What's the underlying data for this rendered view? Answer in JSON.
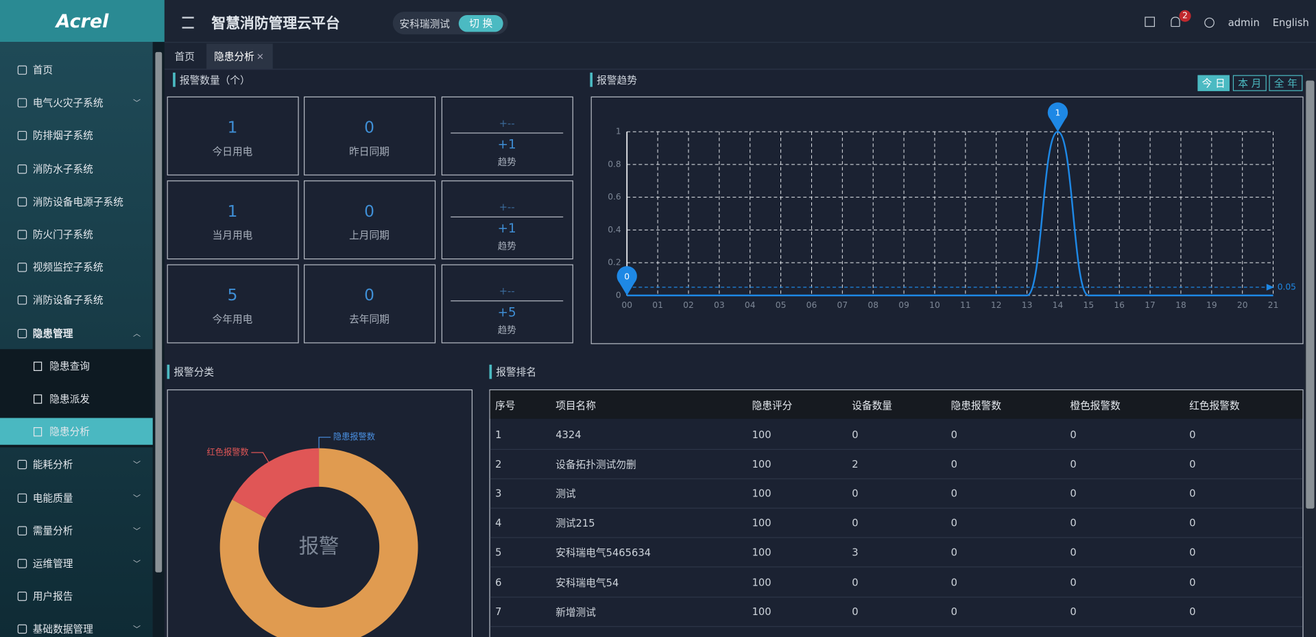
{
  "header": {
    "logo": "Acrel",
    "title": "智慧消防管理云平台",
    "org": "安科瑞测试",
    "switch": "切 换",
    "badge": "2",
    "user": "admin",
    "lang": "English"
  },
  "menu": [
    {
      "label": "首页"
    },
    {
      "label": "电气火灾子系统",
      "collapsible": true
    },
    {
      "label": "防排烟子系统"
    },
    {
      "label": "消防水子系统"
    },
    {
      "label": "消防设备电源子系统"
    },
    {
      "label": "防火门子系统"
    },
    {
      "label": "视频监控子系统"
    },
    {
      "label": "消防设备子系统"
    },
    {
      "label": "隐患管理",
      "collapsible": true,
      "expanded": true,
      "children": [
        {
          "label": "隐患查询"
        },
        {
          "label": "隐患派发"
        },
        {
          "label": "隐患分析",
          "active": true
        }
      ]
    },
    {
      "label": "能耗分析",
      "collapsible": true
    },
    {
      "label": "电能质量",
      "collapsible": true
    },
    {
      "label": "需量分析",
      "collapsible": true
    },
    {
      "label": "运维管理",
      "collapsible": true
    },
    {
      "label": "用户报告"
    },
    {
      "label": "基础数据管理",
      "collapsible": true
    }
  ],
  "tabs": [
    "首页",
    "隐患分析"
  ],
  "stats": {
    "title": "报警数量（个）",
    "rows": [
      {
        "current": {
          "value": 1,
          "label": "今日用电"
        },
        "previous": {
          "value": 0,
          "label": "昨日同期"
        },
        "trend": {
          "sign": "+--",
          "change": "+1",
          "label": "趋势"
        }
      },
      {
        "current": {
          "value": 1,
          "label": "当月用电"
        },
        "previous": {
          "value": 0,
          "label": "上月同期"
        },
        "trend": {
          "sign": "+--",
          "change": "+1",
          "label": "趋势"
        }
      },
      {
        "current": {
          "value": 5,
          "label": "今年用电"
        },
        "previous": {
          "value": 0,
          "label": "去年同期"
        },
        "trend": {
          "sign": "+--",
          "change": "+5",
          "label": "趋势"
        }
      }
    ]
  },
  "periods": [
    "今 日",
    "本 月",
    "全 年"
  ],
  "chart_data": [
    {
      "type": "line",
      "title": "报警趋势",
      "x": [
        "00",
        "01",
        "02",
        "03",
        "04",
        "05",
        "06",
        "07",
        "08",
        "09",
        "10",
        "11",
        "12",
        "13",
        "14",
        "15",
        "16",
        "17",
        "18",
        "19",
        "20",
        "21"
      ],
      "series": [
        {
          "color": "#1e88e5",
          "values": [
            0,
            0,
            0,
            0,
            0,
            0,
            0,
            0,
            0,
            0,
            0,
            0,
            0,
            0,
            1,
            0,
            0,
            0,
            0,
            0,
            0,
            0
          ]
        }
      ],
      "ylim": [
        0,
        1
      ],
      "yticks": [
        0,
        0.2,
        0.4,
        0.6,
        0.8,
        1
      ],
      "grid": true,
      "average_line": 0.05
    },
    {
      "type": "pie",
      "title": "报警分类",
      "center_label": "报警",
      "categories": [
        "隐患报警数",
        null,
        "红色报警数"
      ],
      "values": [
        0,
        83,
        17
      ],
      "colors": [
        "#4a90e2",
        "#e09b50",
        "#e05656"
      ]
    }
  ],
  "table": {
    "title": "报警排名",
    "columns": [
      "序号",
      "项目名称",
      "隐患评分",
      "设备数量",
      "隐患报警数",
      "橙色报警数",
      "红色报警数"
    ],
    "rows": [
      [
        1,
        "4324",
        100,
        0,
        0,
        0,
        0
      ],
      [
        2,
        "设备拓扑测试勿删",
        100,
        2,
        0,
        0,
        0
      ],
      [
        3,
        "测试",
        100,
        0,
        0,
        0,
        0
      ],
      [
        4,
        "测试215",
        100,
        0,
        0,
        0,
        0
      ],
      [
        5,
        "安科瑞电气5465634",
        100,
        3,
        0,
        0,
        0
      ],
      [
        6,
        "安科瑞电气54",
        100,
        0,
        0,
        0,
        0
      ],
      [
        7,
        "新增测试",
        100,
        0,
        0,
        0,
        0
      ]
    ]
  }
}
